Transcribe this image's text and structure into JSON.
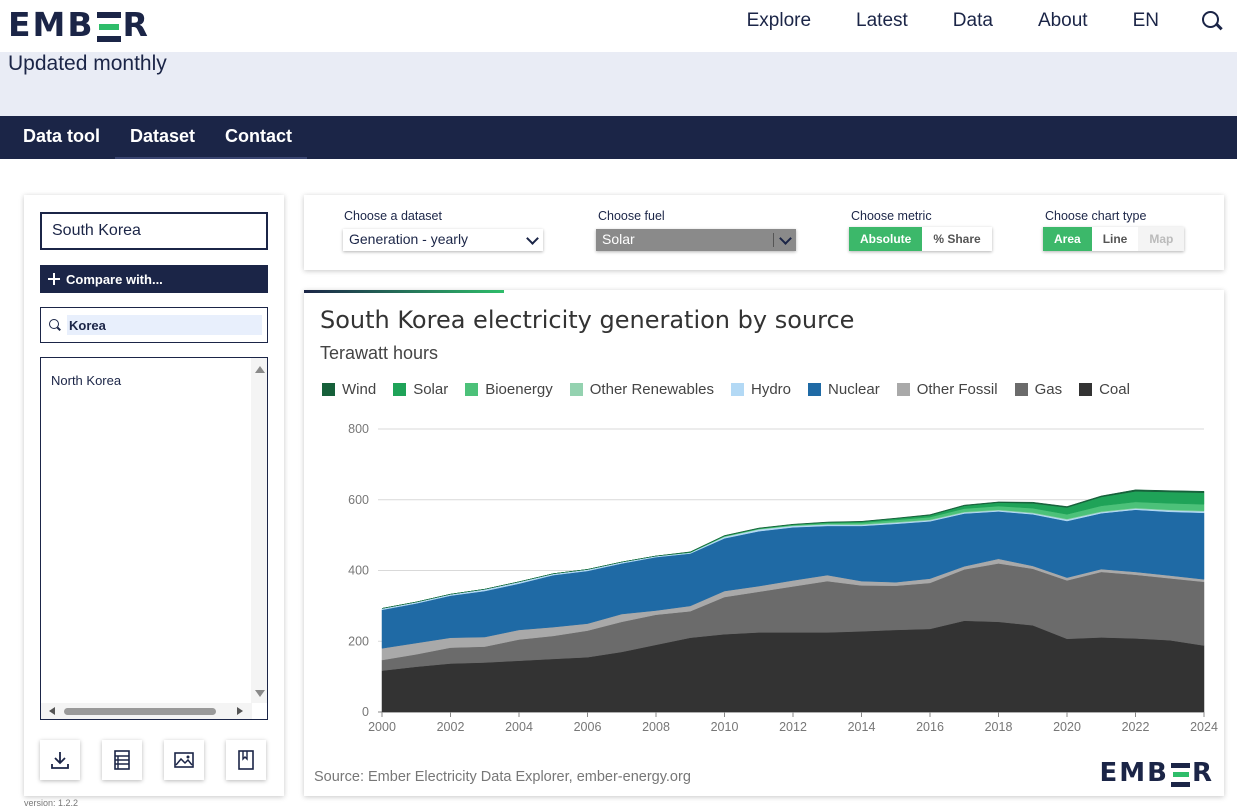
{
  "header": {
    "logo": "EMBER",
    "nav": [
      {
        "label": "Explore"
      },
      {
        "label": "Latest"
      },
      {
        "label": "Data"
      },
      {
        "label": "About"
      },
      {
        "label": "EN"
      }
    ]
  },
  "banner": {
    "text": "Updated monthly"
  },
  "subnav": [
    {
      "label": "Data tool"
    },
    {
      "label": "Dataset"
    },
    {
      "label": "Contact"
    }
  ],
  "sidebar": {
    "country": "South Korea",
    "compare_label": "Compare with...",
    "search_value": "Korea",
    "results": [
      "North Korea"
    ],
    "version": "version: 1.2.2"
  },
  "controls": {
    "dataset_label": "Choose a dataset",
    "dataset_value": "Generation - yearly",
    "fuel_label": "Choose fuel",
    "fuel_value": "Solar",
    "metric_label": "Choose metric",
    "metric_options": [
      "Absolute",
      "% Share"
    ],
    "charttype_label": "Choose chart type",
    "charttype_options": [
      "Area",
      "Line",
      "Map"
    ]
  },
  "chart_data": {
    "type": "area",
    "stacked": true,
    "title": "South Korea electricity generation by source",
    "subtitle": "Terawatt hours",
    "ylim": [
      0,
      800
    ],
    "yticks": [
      "0",
      "200",
      "400",
      "600",
      "800"
    ],
    "xticks": [
      "2000",
      "2002",
      "2004",
      "2006",
      "2008",
      "2010",
      "2012",
      "2014",
      "2016",
      "2018",
      "2020",
      "2022",
      "2024"
    ],
    "x": [
      2000,
      2001,
      2002,
      2003,
      2004,
      2005,
      2006,
      2007,
      2008,
      2009,
      2010,
      2011,
      2012,
      2013,
      2014,
      2015,
      2016,
      2017,
      2018,
      2019,
      2020,
      2021,
      2022,
      2023,
      2024
    ],
    "legend_placement": "top",
    "grid": true,
    "series": [
      {
        "name": "Coal",
        "color": "#333333",
        "values": [
          117,
          128,
          137,
          140,
          145,
          150,
          155,
          170,
          190,
          210,
          220,
          225,
          225,
          225,
          228,
          232,
          235,
          258,
          255,
          245,
          207,
          211,
          208,
          203,
          188
        ]
      },
      {
        "name": "Gas",
        "color": "#6b6b6b",
        "values": [
          30,
          35,
          45,
          45,
          60,
          65,
          75,
          85,
          85,
          75,
          105,
          115,
          130,
          145,
          130,
          125,
          130,
          145,
          165,
          160,
          165,
          185,
          180,
          175,
          180
        ]
      },
      {
        "name": "Other Fossil",
        "color": "#a9a9a9",
        "values": [
          33,
          32,
          28,
          27,
          27,
          25,
          20,
          22,
          12,
          15,
          17,
          16,
          17,
          17,
          12,
          10,
          12,
          9,
          13,
          8,
          8,
          8,
          8,
          8,
          7
        ]
      },
      {
        "name": "Nuclear",
        "color": "#1f6aa5",
        "values": [
          109,
          112,
          119,
          130,
          131,
          147,
          149,
          143,
          151,
          148,
          149,
          155,
          150,
          139,
          156,
          165,
          162,
          149,
          134,
          146,
          160,
          158,
          176,
          180,
          188
        ]
      },
      {
        "name": "Hydro",
        "color": "#b3d9f5",
        "values": [
          4,
          4,
          4,
          5,
          5,
          4,
          4,
          4,
          3,
          3,
          4,
          5,
          4,
          4,
          3,
          3,
          3,
          3,
          3,
          3,
          4,
          3,
          3,
          4,
          4
        ]
      },
      {
        "name": "Other Renewables",
        "color": "#94d2b0",
        "values": [
          0,
          0,
          0,
          0,
          0,
          0,
          0,
          0,
          0,
          0,
          1,
          1,
          1,
          1,
          2,
          2,
          2,
          2,
          2,
          2,
          2,
          2,
          2,
          2,
          2
        ]
      },
      {
        "name": "Bioenergy",
        "color": "#4cc179",
        "values": [
          0,
          0,
          0,
          0,
          0,
          0,
          0,
          0,
          0,
          0,
          1,
          1,
          2,
          3,
          4,
          6,
          7,
          9,
          10,
          12,
          13,
          16,
          17,
          18,
          18
        ]
      },
      {
        "name": "Solar",
        "color": "#1fa358",
        "values": [
          0,
          0,
          0,
          0,
          0,
          0,
          0,
          0,
          0,
          1,
          1,
          1,
          1,
          2,
          3,
          4,
          5,
          8,
          10,
          14,
          19,
          25,
          30,
          32,
          33
        ]
      },
      {
        "name": "Wind",
        "color": "#16603a",
        "values": [
          0,
          0,
          0,
          0,
          0,
          0,
          0,
          0,
          0,
          1,
          1,
          1,
          1,
          1,
          1,
          1,
          2,
          2,
          2,
          3,
          3,
          3,
          4,
          4,
          4
        ]
      }
    ],
    "legend_order": [
      "Wind",
      "Solar",
      "Bioenergy",
      "Other Renewables",
      "Hydro",
      "Nuclear",
      "Other Fossil",
      "Gas",
      "Coal"
    ],
    "source": "Source: Ember Electricity Data Explorer, ember-energy.org"
  }
}
